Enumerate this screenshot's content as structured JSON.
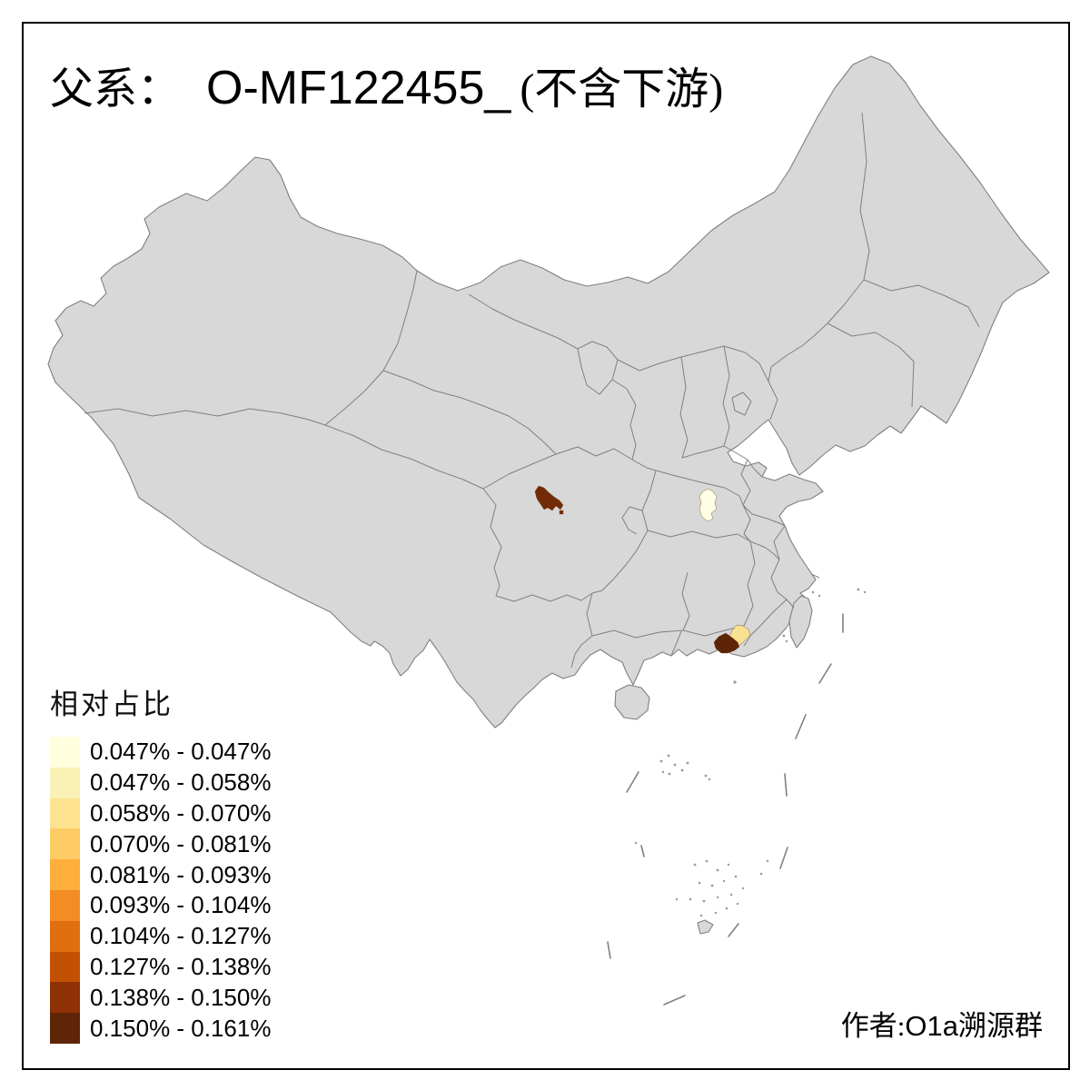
{
  "title": {
    "zh_prefix": "父系：",
    "code": "O-MF122455_",
    "zh_suffix": "(不含下游)"
  },
  "legend": {
    "title": "相对占比",
    "items": [
      {
        "label": "0.047% - 0.047%",
        "color": "#FFFFDE"
      },
      {
        "label": "0.047% - 0.058%",
        "color": "#FAF1B6"
      },
      {
        "label": "0.058% - 0.070%",
        "color": "#FDE38F"
      },
      {
        "label": "0.070% - 0.081%",
        "color": "#FDCC66"
      },
      {
        "label": "0.081% - 0.093%",
        "color": "#FDAE3B"
      },
      {
        "label": "0.093% - 0.104%",
        "color": "#F28D24"
      },
      {
        "label": "0.104% - 0.127%",
        "color": "#E06F10"
      },
      {
        "label": "0.127% - 0.138%",
        "color": "#C35103"
      },
      {
        "label": "0.138% - 0.150%",
        "color": "#8E3104"
      },
      {
        "label": "0.150% - 0.161%",
        "color": "#5E2506"
      }
    ]
  },
  "author": {
    "prefix_zh": "作者:",
    "latin": "O1a",
    "suffix_zh": "溯源群"
  },
  "map": {
    "land_fill": "#D8D8D8",
    "border_color": "#808080",
    "regions": [
      {
        "name": "sichuan-highlight",
        "range": "0.138% - 0.150%",
        "color": "#732A08"
      },
      {
        "name": "hubei-highlight",
        "range": "0.047% - 0.047%",
        "color": "#FFFDE4"
      },
      {
        "name": "guangdong-east-highlight",
        "range": "0.058% - 0.070%",
        "color": "#F8E193"
      },
      {
        "name": "guangdong-chaoshan-highlight",
        "range": "0.150% - 0.161%",
        "color": "#5E2406"
      }
    ]
  }
}
